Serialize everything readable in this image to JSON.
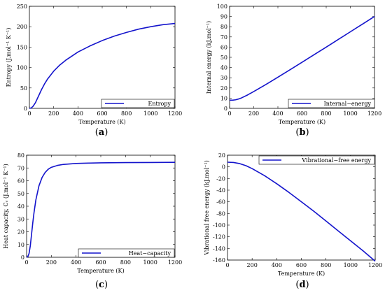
{
  "chart_data": [
    {
      "type": "line",
      "panel_label": "(a)",
      "caption_letter": "a",
      "xlabel": "Temperature (K)",
      "ylabel": "Entropy (J.mol⁻¹ K⁻¹)",
      "xlim": [
        0,
        1200
      ],
      "ylim": [
        0,
        250
      ],
      "x_ticks": [
        0,
        200,
        400,
        600,
        800,
        1000,
        1200
      ],
      "y_ticks": [
        0,
        50,
        100,
        150,
        200,
        250
      ],
      "legend": "bottom-right",
      "grid": false,
      "color": "#1414cc",
      "series": [
        {
          "name": "Entropy",
          "x": [
            0,
            15,
            30,
            50,
            75,
            100,
            125,
            150,
            200,
            250,
            300,
            400,
            500,
            600,
            700,
            800,
            900,
            1000,
            1100,
            1200
          ],
          "y": [
            0,
            1,
            5,
            14,
            30,
            46,
            60,
            72,
            91,
            106,
            118,
            138,
            153,
            166,
            177,
            186,
            194,
            200,
            205,
            208
          ]
        }
      ]
    },
    {
      "type": "line",
      "panel_label": "(b)",
      "caption_letter": "b",
      "xlabel": "Temperature (K)",
      "ylabel": "Internal energy (kJ.mol⁻¹)",
      "xlim": [
        0,
        1200
      ],
      "ylim": [
        0,
        100
      ],
      "x_ticks": [
        0,
        200,
        400,
        600,
        800,
        1000,
        1200
      ],
      "y_ticks": [
        0,
        10,
        20,
        30,
        40,
        50,
        60,
        70,
        80,
        90,
        100
      ],
      "legend": "bottom-right",
      "grid": false,
      "color": "#1414cc",
      "series": [
        {
          "name": "Internal−energy",
          "x": [
            0,
            25,
            50,
            75,
            100,
            150,
            200,
            300,
            400,
            500,
            600,
            700,
            800,
            900,
            1000,
            1100,
            1200
          ],
          "y": [
            8,
            8,
            8.4,
            9.2,
            10.3,
            13.2,
            16.5,
            23.3,
            30.5,
            37.8,
            45.2,
            52.6,
            60.0,
            67.5,
            75.0,
            82.5,
            90.0
          ]
        }
      ]
    },
    {
      "type": "line",
      "panel_label": "(c)",
      "caption_letter": "c",
      "xlabel": "Temperature (K)",
      "ylabel": "Heat capacity, Cᵥ (J.mol⁻¹ K⁻¹)",
      "xlim": [
        0,
        1200
      ],
      "ylim": [
        0,
        80
      ],
      "x_ticks": [
        0,
        200,
        400,
        600,
        800,
        1000,
        1200
      ],
      "y_ticks": [
        0,
        10,
        20,
        30,
        40,
        50,
        60,
        70,
        80
      ],
      "legend": "bottom-right",
      "grid": false,
      "color": "#1414cc",
      "series": [
        {
          "name": "Heat−capacity",
          "x": [
            0,
            10,
            20,
            30,
            40,
            50,
            60,
            75,
            100,
            125,
            150,
            175,
            200,
            250,
            300,
            400,
            500,
            600,
            800,
            1000,
            1200
          ],
          "y": [
            0,
            0.5,
            3,
            9,
            18,
            27,
            35,
            45,
            56,
            62.5,
            66.5,
            69,
            70.5,
            72,
            72.8,
            73.5,
            73.8,
            74,
            74.2,
            74.3,
            74.4
          ]
        }
      ]
    },
    {
      "type": "line",
      "panel_label": "(d)",
      "caption_letter": "d",
      "xlabel": "Temperature (K)",
      "ylabel": "Vibrational free energy (kJ.mol⁻¹)",
      "xlim": [
        0,
        1200
      ],
      "ylim": [
        -160,
        20
      ],
      "x_ticks": [
        0,
        200,
        400,
        600,
        800,
        1000,
        1200
      ],
      "y_ticks": [
        -160,
        -140,
        -120,
        -100,
        -80,
        -60,
        -40,
        -20,
        0,
        20
      ],
      "legend": "top-right",
      "grid": false,
      "color": "#1414cc",
      "series": [
        {
          "name": "Vibrational−free energy",
          "x": [
            0,
            50,
            100,
            150,
            200,
            300,
            400,
            500,
            600,
            700,
            800,
            900,
            1000,
            1100,
            1200
          ],
          "y": [
            8,
            7.5,
            5.5,
            2,
            -3,
            -15,
            -29,
            -44,
            -60,
            -76,
            -93,
            -110,
            -127,
            -144,
            -162
          ]
        }
      ]
    }
  ]
}
